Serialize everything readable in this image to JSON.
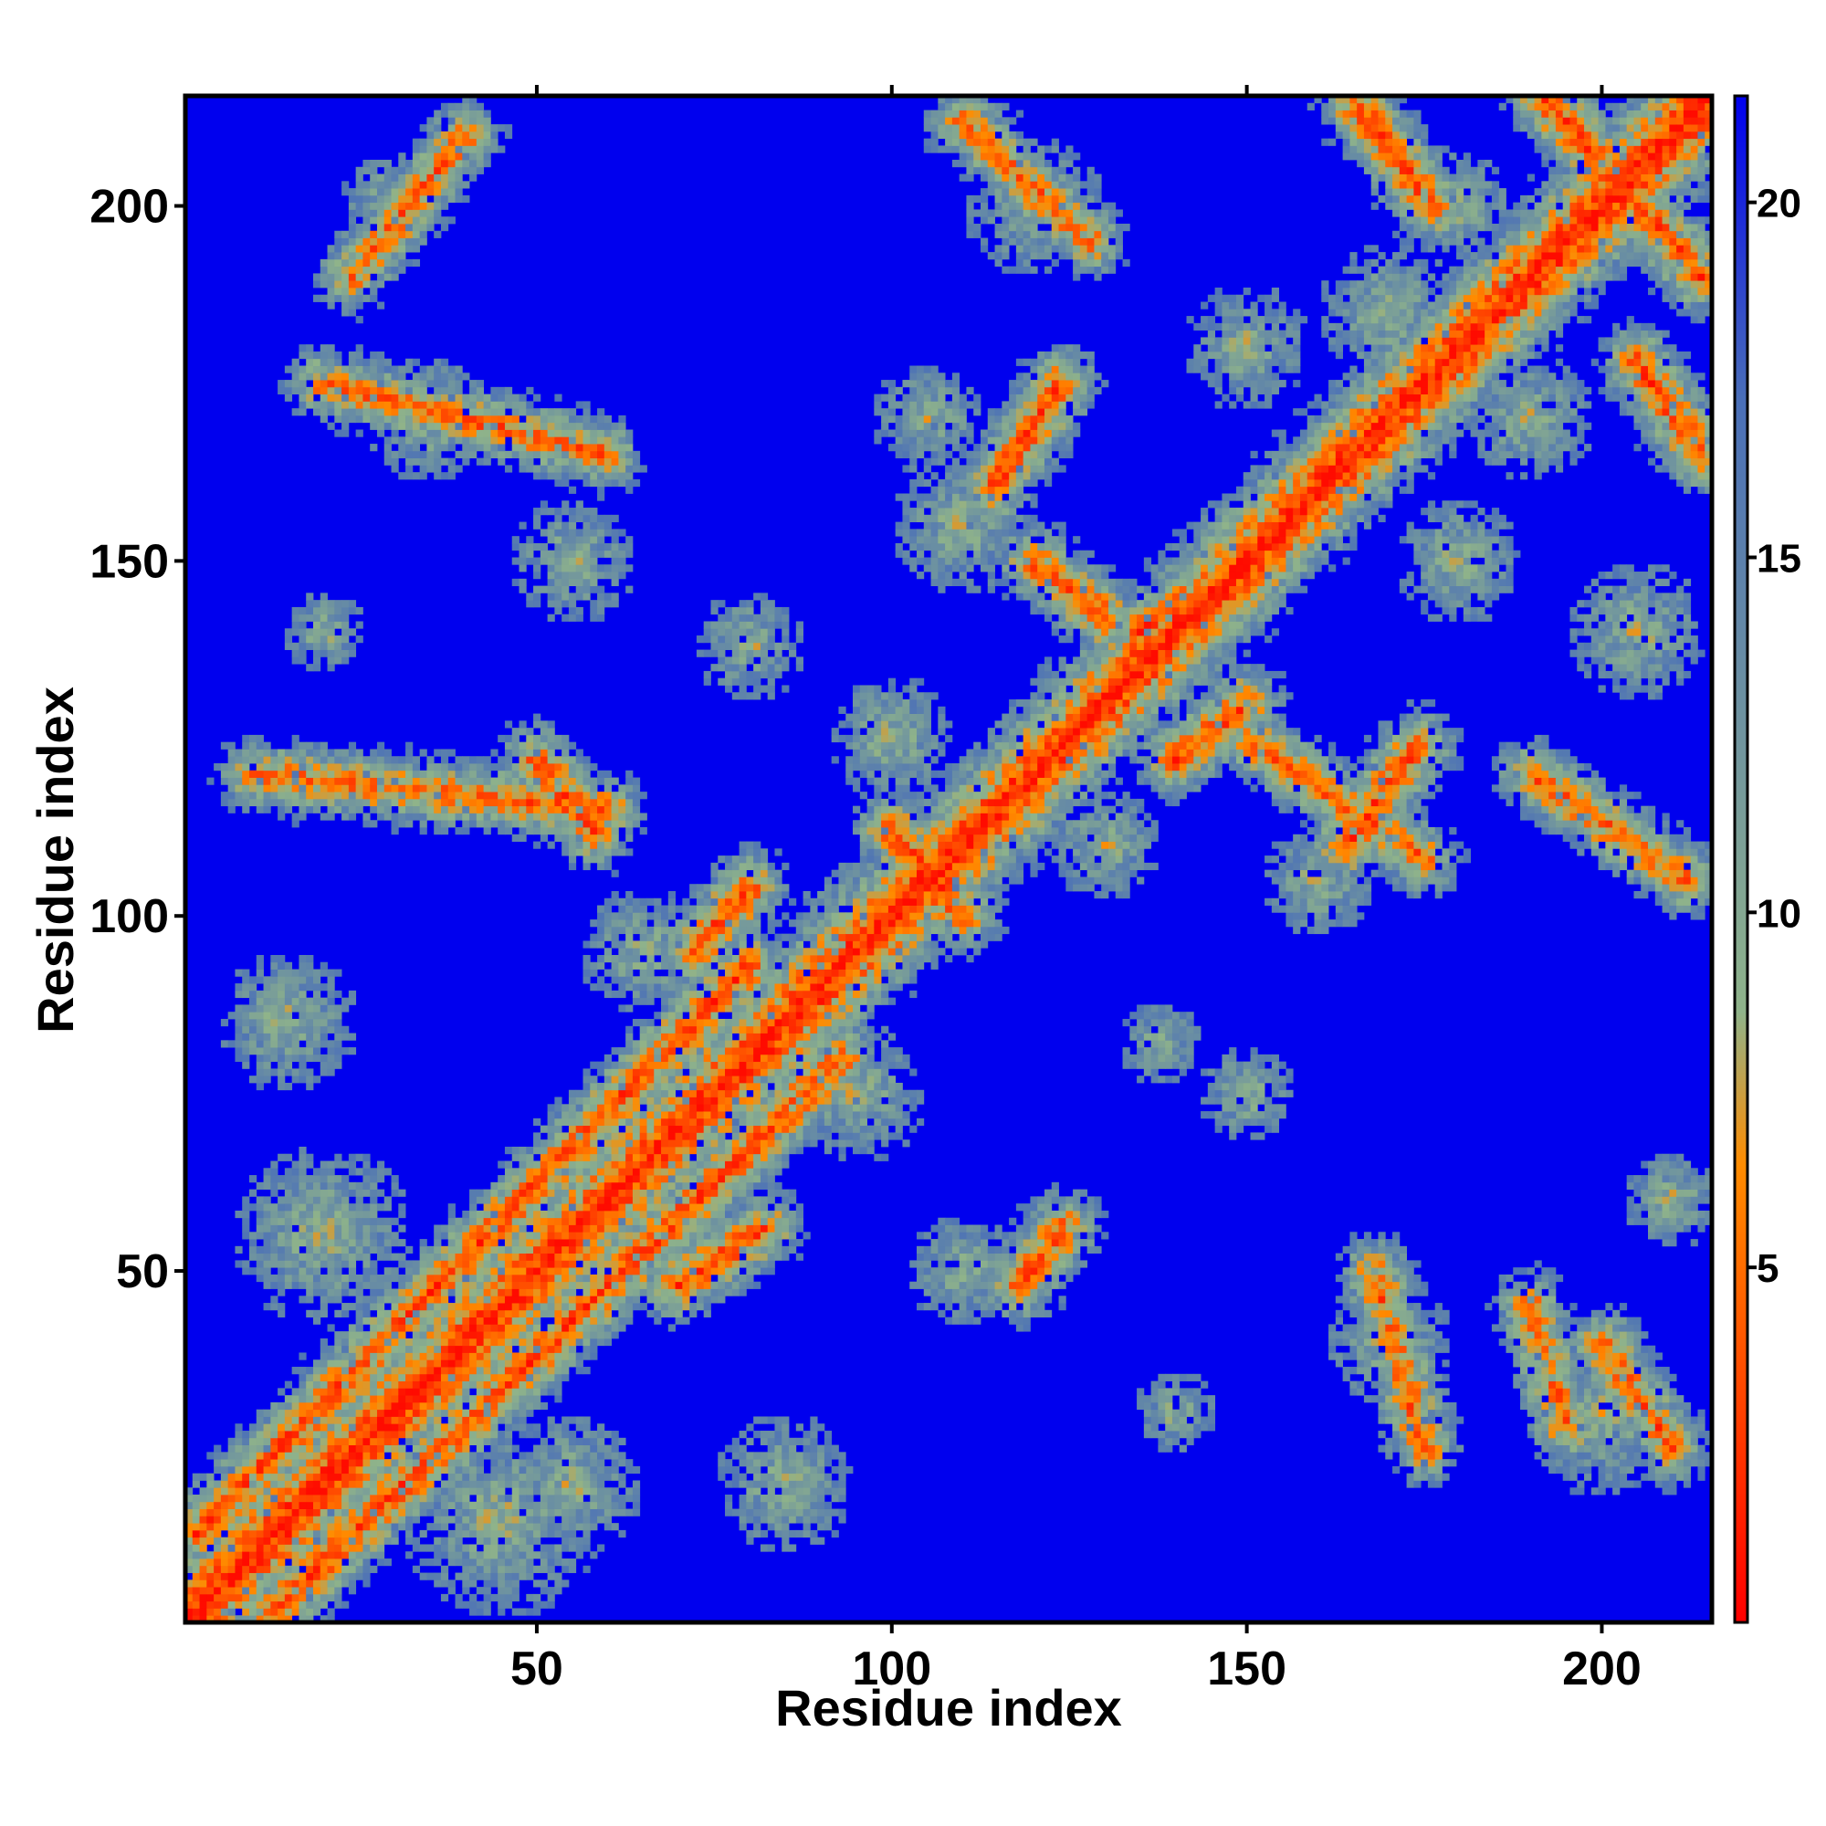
{
  "chart_data": {
    "type": "heatmap",
    "title": "",
    "xlabel": "Residue index",
    "ylabel": "Residue index",
    "n_residues": 215,
    "xlim": [
      1,
      215
    ],
    "ylim": [
      1,
      215
    ],
    "x_ticks": [
      "50",
      "100",
      "150",
      "200"
    ],
    "y_ticks": [
      "50",
      "100",
      "150",
      "200"
    ],
    "colorbar": {
      "ticks": [
        "5",
        "10",
        "15",
        "20"
      ],
      "range": [
        0,
        21.5
      ],
      "colors": [
        "#ff0000",
        "#ff8c00",
        "#8fb38a",
        "#4a6fb8",
        "#0000ee"
      ]
    },
    "background_value": 21,
    "bands": [
      {
        "i1": 1,
        "j1": 1,
        "i2": 215,
        "j2": 215,
        "level": 1
      },
      {
        "i1": 2,
        "j1": 13,
        "i2": 80,
        "j2": 93,
        "level": 3
      },
      {
        "i1": 13,
        "j1": 2,
        "i2": 93,
        "j2": 80,
        "level": 3
      },
      {
        "i1": 50,
        "j1": 122,
        "i2": 58,
        "j2": 112,
        "level": 3
      },
      {
        "i1": 72,
        "j1": 95,
        "i2": 80,
        "j2": 104,
        "level": 3
      },
      {
        "i1": 70,
        "j1": 48,
        "i2": 82,
        "j2": 56,
        "level": 3
      },
      {
        "i1": 118,
        "j1": 48,
        "i2": 124,
        "j2": 56,
        "level": 3
      },
      {
        "i1": 114,
        "j1": 160,
        "i2": 124,
        "j2": 175,
        "level": 3
      },
      {
        "i1": 164,
        "j1": 110,
        "i2": 174,
        "j2": 124,
        "level": 3
      },
      {
        "i1": 165,
        "j1": 215,
        "i2": 176,
        "j2": 200,
        "level": 3
      },
      {
        "i1": 192,
        "j1": 215,
        "i2": 214,
        "j2": 190,
        "level": 3
      },
      {
        "i1": 205,
        "j1": 178,
        "i2": 214,
        "j2": 165,
        "level": 3
      },
      {
        "i1": 120,
        "j1": 150,
        "i2": 130,
        "j2": 142,
        "level": 3
      },
      {
        "i1": 140,
        "j1": 122,
        "i2": 150,
        "j2": 130,
        "level": 3
      },
      {
        "i1": 135,
        "j1": 140,
        "i2": 150,
        "j2": 150,
        "level": 3
      },
      {
        "i1": 100,
        "j1": 112,
        "i2": 110,
        "j2": 100,
        "level": 3
      },
      {
        "i1": 24,
        "j1": 190,
        "i2": 40,
        "j2": 210,
        "level": 4
      },
      {
        "i1": 10,
        "j1": 120,
        "i2": 60,
        "j2": 115,
        "level": 4
      },
      {
        "i1": 20,
        "j1": 175,
        "i2": 60,
        "j2": 165,
        "level": 4
      },
      {
        "i1": 110,
        "j1": 212,
        "i2": 128,
        "j2": 195,
        "level": 4
      },
      {
        "i1": 200,
        "j1": 40,
        "i2": 210,
        "j2": 25,
        "level": 4
      },
      {
        "i1": 195,
        "j1": 28,
        "i2": 190,
        "j2": 45,
        "level": 4
      },
      {
        "i1": 168,
        "j1": 50,
        "i2": 175,
        "j2": 25,
        "level": 4
      },
      {
        "i1": 190,
        "j1": 120,
        "i2": 212,
        "j2": 105,
        "level": 4
      },
      {
        "i1": 150,
        "j1": 125,
        "i2": 175,
        "j2": 108,
        "level": 4
      }
    ],
    "blobs": [
      {
        "ci": 45,
        "cj": 15,
        "r": 14
      },
      {
        "ci": 85,
        "cj": 20,
        "r": 10
      },
      {
        "ci": 15,
        "cj": 85,
        "r": 10
      },
      {
        "ci": 20,
        "cj": 55,
        "r": 13
      },
      {
        "ci": 55,
        "cj": 20,
        "r": 10
      },
      {
        "ci": 30,
        "cj": 200,
        "r": 8
      },
      {
        "ci": 35,
        "cj": 170,
        "r": 9
      },
      {
        "ci": 55,
        "cj": 150,
        "r": 9
      },
      {
        "ci": 80,
        "cj": 138,
        "r": 8
      },
      {
        "ci": 20,
        "cj": 140,
        "r": 6
      },
      {
        "ci": 110,
        "cj": 155,
        "r": 10
      },
      {
        "ci": 105,
        "cj": 170,
        "r": 8
      },
      {
        "ci": 120,
        "cj": 200,
        "r": 10
      },
      {
        "ci": 138,
        "cj": 82,
        "r": 6
      },
      {
        "ci": 140,
        "cj": 140,
        "r": 10
      },
      {
        "ci": 170,
        "cj": 185,
        "r": 10
      },
      {
        "ci": 190,
        "cj": 170,
        "r": 9
      },
      {
        "ci": 205,
        "cj": 140,
        "r": 10
      },
      {
        "ci": 180,
        "cj": 150,
        "r": 9
      },
      {
        "ci": 160,
        "cj": 105,
        "r": 8
      },
      {
        "ci": 200,
        "cj": 30,
        "r": 12
      },
      {
        "ci": 170,
        "cj": 40,
        "r": 9
      },
      {
        "ci": 140,
        "cj": 30,
        "r": 6
      },
      {
        "ci": 150,
        "cj": 75,
        "r": 7
      },
      {
        "ci": 210,
        "cj": 60,
        "r": 7
      },
      {
        "ci": 95,
        "cj": 75,
        "r": 10
      },
      {
        "ci": 110,
        "cj": 50,
        "r": 8
      },
      {
        "ci": 75,
        "cj": 65,
        "r": 9
      },
      {
        "ci": 65,
        "cj": 95,
        "r": 9
      },
      {
        "ci": 95,
        "cj": 100,
        "r": 8
      },
      {
        "ci": 100,
        "cj": 125,
        "r": 9
      },
      {
        "ci": 130,
        "cj": 110,
        "r": 8
      },
      {
        "ci": 150,
        "cj": 180,
        "r": 9
      },
      {
        "ci": 180,
        "cj": 200,
        "r": 8
      }
    ]
  }
}
